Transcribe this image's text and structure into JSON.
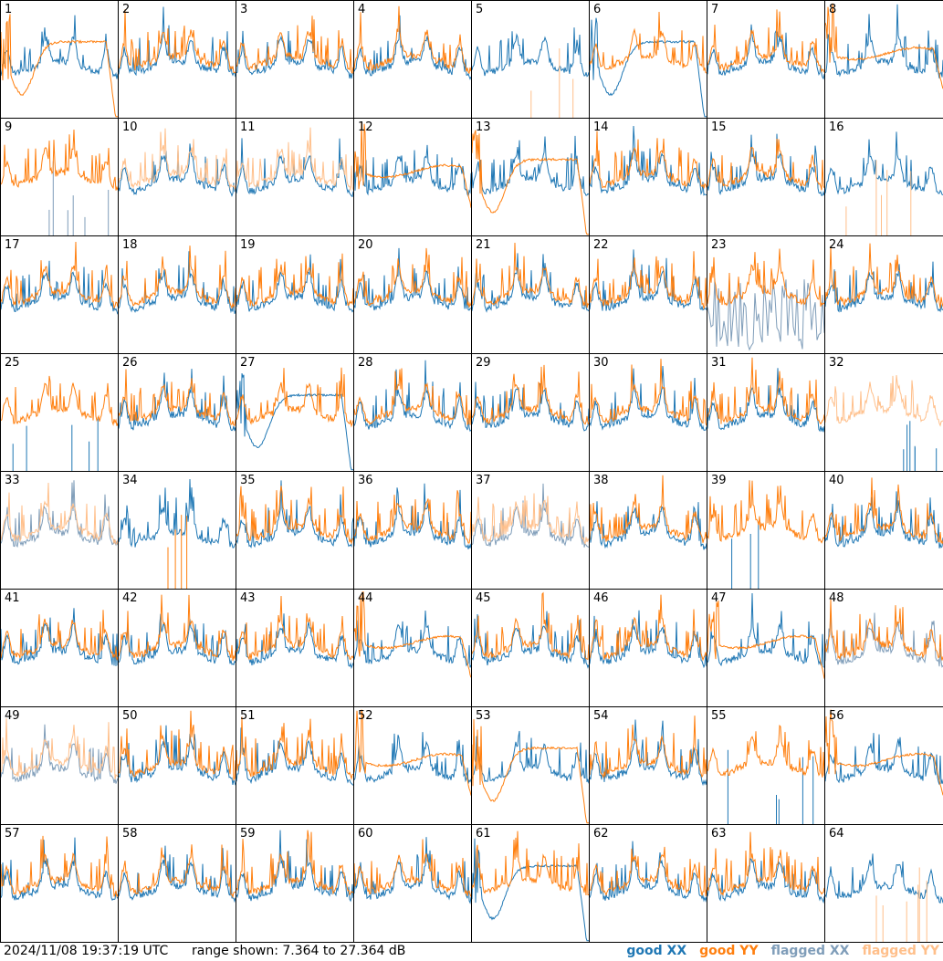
{
  "footer": {
    "timestamp": "2024/11/08 19:37:19 UTC",
    "range": "range shown: 7.364 to 27.364 dB"
  },
  "legend": [
    {
      "label": "good XX",
      "color": "#1f77b4"
    },
    {
      "label": "good YY",
      "color": "#ff7f0e"
    },
    {
      "label": "flagged XX",
      "color": "#7f9db9"
    },
    {
      "label": "flagged YY",
      "color": "#ffbf8a"
    }
  ],
  "chart_data": {
    "type": "line",
    "grid": {
      "rows": 8,
      "cols": 8
    },
    "ylim_db": [
      7.364,
      27.364
    ],
    "antennas": [
      {
        "id": "1",
        "xx": "good",
        "yy": "good",
        "xx_shape": "normal",
        "yy_shape": "droop"
      },
      {
        "id": "2",
        "xx": "good",
        "yy": "good",
        "xx_shape": "normal",
        "yy_shape": "normal"
      },
      {
        "id": "3",
        "xx": "good",
        "yy": "good",
        "xx_shape": "normal",
        "yy_shape": "normal"
      },
      {
        "id": "4",
        "xx": "good",
        "yy": "good",
        "xx_shape": "normal",
        "yy_shape": "normal"
      },
      {
        "id": "5",
        "xx": "good",
        "yy": "flagged",
        "xx_shape": "normal",
        "yy_shape": "spikes"
      },
      {
        "id": "6",
        "xx": "good",
        "yy": "good",
        "xx_shape": "droop",
        "yy_shape": "normal"
      },
      {
        "id": "7",
        "xx": "good",
        "yy": "good",
        "xx_shape": "normal",
        "yy_shape": "normal"
      },
      {
        "id": "8",
        "xx": "good",
        "yy": "good",
        "xx_shape": "normal",
        "yy_shape": "flat"
      },
      {
        "id": "9",
        "xx": "flagged",
        "yy": "good",
        "xx_shape": "spikes",
        "yy_shape": "normal"
      },
      {
        "id": "10",
        "xx": "good",
        "yy": "flagged",
        "xx_shape": "normal",
        "yy_shape": "normal"
      },
      {
        "id": "11",
        "xx": "good",
        "yy": "flagged",
        "xx_shape": "normal",
        "yy_shape": "normal"
      },
      {
        "id": "12",
        "xx": "good",
        "yy": "good",
        "xx_shape": "normal",
        "yy_shape": "flat"
      },
      {
        "id": "13",
        "xx": "good",
        "yy": "good",
        "xx_shape": "normal",
        "yy_shape": "droop"
      },
      {
        "id": "14",
        "xx": "good",
        "yy": "good",
        "xx_shape": "normal",
        "yy_shape": "normal"
      },
      {
        "id": "15",
        "xx": "good",
        "yy": "good",
        "xx_shape": "normal",
        "yy_shape": "normal"
      },
      {
        "id": "16",
        "xx": "good",
        "yy": "flagged",
        "xx_shape": "normal",
        "yy_shape": "spikes"
      },
      {
        "id": "17",
        "xx": "good",
        "yy": "good",
        "xx_shape": "normal",
        "yy_shape": "normal"
      },
      {
        "id": "18",
        "xx": "good",
        "yy": "good",
        "xx_shape": "normal",
        "yy_shape": "normal"
      },
      {
        "id": "19",
        "xx": "good",
        "yy": "good",
        "xx_shape": "normal",
        "yy_shape": "normal"
      },
      {
        "id": "20",
        "xx": "good",
        "yy": "good",
        "xx_shape": "normal",
        "yy_shape": "normal"
      },
      {
        "id": "21",
        "xx": "good",
        "yy": "good",
        "xx_shape": "normal",
        "yy_shape": "normal"
      },
      {
        "id": "22",
        "xx": "good",
        "yy": "good",
        "xx_shape": "normal",
        "yy_shape": "normal"
      },
      {
        "id": "23",
        "xx": "flagged",
        "yy": "good",
        "xx_shape": "noisy",
        "yy_shape": "normal"
      },
      {
        "id": "24",
        "xx": "good",
        "yy": "good",
        "xx_shape": "normal",
        "yy_shape": "normal"
      },
      {
        "id": "25",
        "xx": "good",
        "yy": "good",
        "xx_shape": "spikes",
        "yy_shape": "normal"
      },
      {
        "id": "26",
        "xx": "good",
        "yy": "good",
        "xx_shape": "normal",
        "yy_shape": "normal"
      },
      {
        "id": "27",
        "xx": "good",
        "yy": "good",
        "xx_shape": "droop",
        "yy_shape": "normal"
      },
      {
        "id": "28",
        "xx": "good",
        "yy": "good",
        "xx_shape": "normal",
        "yy_shape": "normal"
      },
      {
        "id": "29",
        "xx": "good",
        "yy": "good",
        "xx_shape": "normal",
        "yy_shape": "normal"
      },
      {
        "id": "30",
        "xx": "good",
        "yy": "good",
        "xx_shape": "normal",
        "yy_shape": "normal"
      },
      {
        "id": "31",
        "xx": "good",
        "yy": "good",
        "xx_shape": "normal",
        "yy_shape": "normal"
      },
      {
        "id": "32",
        "xx": "good",
        "yy": "flagged",
        "xx_shape": "spikes",
        "yy_shape": "normal"
      },
      {
        "id": "33",
        "xx": "flagged",
        "yy": "flagged",
        "xx_shape": "normal",
        "yy_shape": "normal"
      },
      {
        "id": "34",
        "xx": "good",
        "yy": "good",
        "xx_shape": "normal",
        "yy_shape": "spikes"
      },
      {
        "id": "35",
        "xx": "good",
        "yy": "good",
        "xx_shape": "normal",
        "yy_shape": "normal"
      },
      {
        "id": "36",
        "xx": "good",
        "yy": "good",
        "xx_shape": "normal",
        "yy_shape": "normal"
      },
      {
        "id": "37",
        "xx": "flagged",
        "yy": "flagged",
        "xx_shape": "normal",
        "yy_shape": "normal"
      },
      {
        "id": "38",
        "xx": "good",
        "yy": "good",
        "xx_shape": "normal",
        "yy_shape": "normal"
      },
      {
        "id": "39",
        "xx": "good",
        "yy": "good",
        "xx_shape": "spikes",
        "yy_shape": "normal"
      },
      {
        "id": "40",
        "xx": "good",
        "yy": "good",
        "xx_shape": "normal",
        "yy_shape": "normal"
      },
      {
        "id": "41",
        "xx": "good",
        "yy": "good",
        "xx_shape": "normal",
        "yy_shape": "normal"
      },
      {
        "id": "42",
        "xx": "good",
        "yy": "good",
        "xx_shape": "normal",
        "yy_shape": "normal"
      },
      {
        "id": "43",
        "xx": "good",
        "yy": "good",
        "xx_shape": "normal",
        "yy_shape": "normal"
      },
      {
        "id": "44",
        "xx": "good",
        "yy": "good",
        "xx_shape": "normal",
        "yy_shape": "flat"
      },
      {
        "id": "45",
        "xx": "good",
        "yy": "good",
        "xx_shape": "normal",
        "yy_shape": "normal"
      },
      {
        "id": "46",
        "xx": "good",
        "yy": "good",
        "xx_shape": "normal",
        "yy_shape": "normal"
      },
      {
        "id": "47",
        "xx": "good",
        "yy": "good",
        "xx_shape": "normal",
        "yy_shape": "flat"
      },
      {
        "id": "48",
        "xx": "flagged",
        "yy": "good",
        "xx_shape": "normal",
        "yy_shape": "normal"
      },
      {
        "id": "49",
        "xx": "flagged",
        "yy": "flagged",
        "xx_shape": "normal",
        "yy_shape": "normal"
      },
      {
        "id": "50",
        "xx": "good",
        "yy": "good",
        "xx_shape": "normal",
        "yy_shape": "normal"
      },
      {
        "id": "51",
        "xx": "good",
        "yy": "good",
        "xx_shape": "normal",
        "yy_shape": "normal"
      },
      {
        "id": "52",
        "xx": "good",
        "yy": "good",
        "xx_shape": "normal",
        "yy_shape": "flat"
      },
      {
        "id": "53",
        "xx": "good",
        "yy": "good",
        "xx_shape": "normal",
        "yy_shape": "droop"
      },
      {
        "id": "54",
        "xx": "good",
        "yy": "good",
        "xx_shape": "normal",
        "yy_shape": "normal"
      },
      {
        "id": "55",
        "xx": "good",
        "yy": "good",
        "xx_shape": "spikes",
        "yy_shape": "normal"
      },
      {
        "id": "56",
        "xx": "good",
        "yy": "good",
        "xx_shape": "normal",
        "yy_shape": "flat"
      },
      {
        "id": "57",
        "xx": "good",
        "yy": "good",
        "xx_shape": "normal",
        "yy_shape": "normal"
      },
      {
        "id": "58",
        "xx": "good",
        "yy": "good",
        "xx_shape": "normal",
        "yy_shape": "normal"
      },
      {
        "id": "59",
        "xx": "good",
        "yy": "good",
        "xx_shape": "normal",
        "yy_shape": "normal"
      },
      {
        "id": "60",
        "xx": "good",
        "yy": "good",
        "xx_shape": "normal",
        "yy_shape": "normal"
      },
      {
        "id": "61",
        "xx": "good",
        "yy": "good",
        "xx_shape": "droop",
        "yy_shape": "normal"
      },
      {
        "id": "62",
        "xx": "good",
        "yy": "good",
        "xx_shape": "normal",
        "yy_shape": "normal"
      },
      {
        "id": "63",
        "xx": "good",
        "yy": "good",
        "xx_shape": "normal",
        "yy_shape": "normal"
      },
      {
        "id": "64",
        "xx": "good",
        "yy": "flagged",
        "xx_shape": "normal",
        "yy_shape": "spikes"
      }
    ]
  }
}
